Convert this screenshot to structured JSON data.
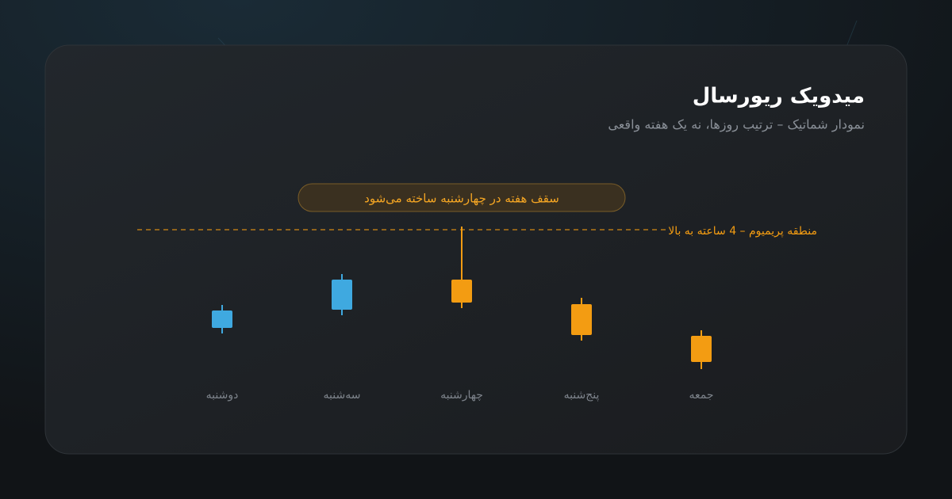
{
  "chart_data": {
    "type": "candlestick",
    "title": "میدویک ریورسال",
    "subtitle": "نمودار شماتیک – ترتیب روزها، نه یک هفته واقعی",
    "annotation": "سقف هفته در چهارشنبه ساخته می‌شود",
    "reference_line": {
      "value": 95,
      "label": "منطقه پریمیوم – 4 ساعته به بالا",
      "color": "#f39c12"
    },
    "categories": [
      "دوشنبه",
      "سه‌شنبه",
      "چهارشنبه",
      "پنج‌شنبه",
      "جمعه"
    ],
    "open": [
      33,
      44.5,
      63.5,
      48,
      28
    ],
    "high": [
      47.5,
      67,
      97,
      52,
      31.5
    ],
    "low": [
      29.5,
      41,
      45.5,
      25,
      7
    ],
    "close": [
      44,
      63.5,
      49,
      28.5,
      11.5
    ],
    "up_color": "#3fa9e0",
    "down_color": "#f39c12",
    "ylim": [
      0,
      100
    ]
  }
}
